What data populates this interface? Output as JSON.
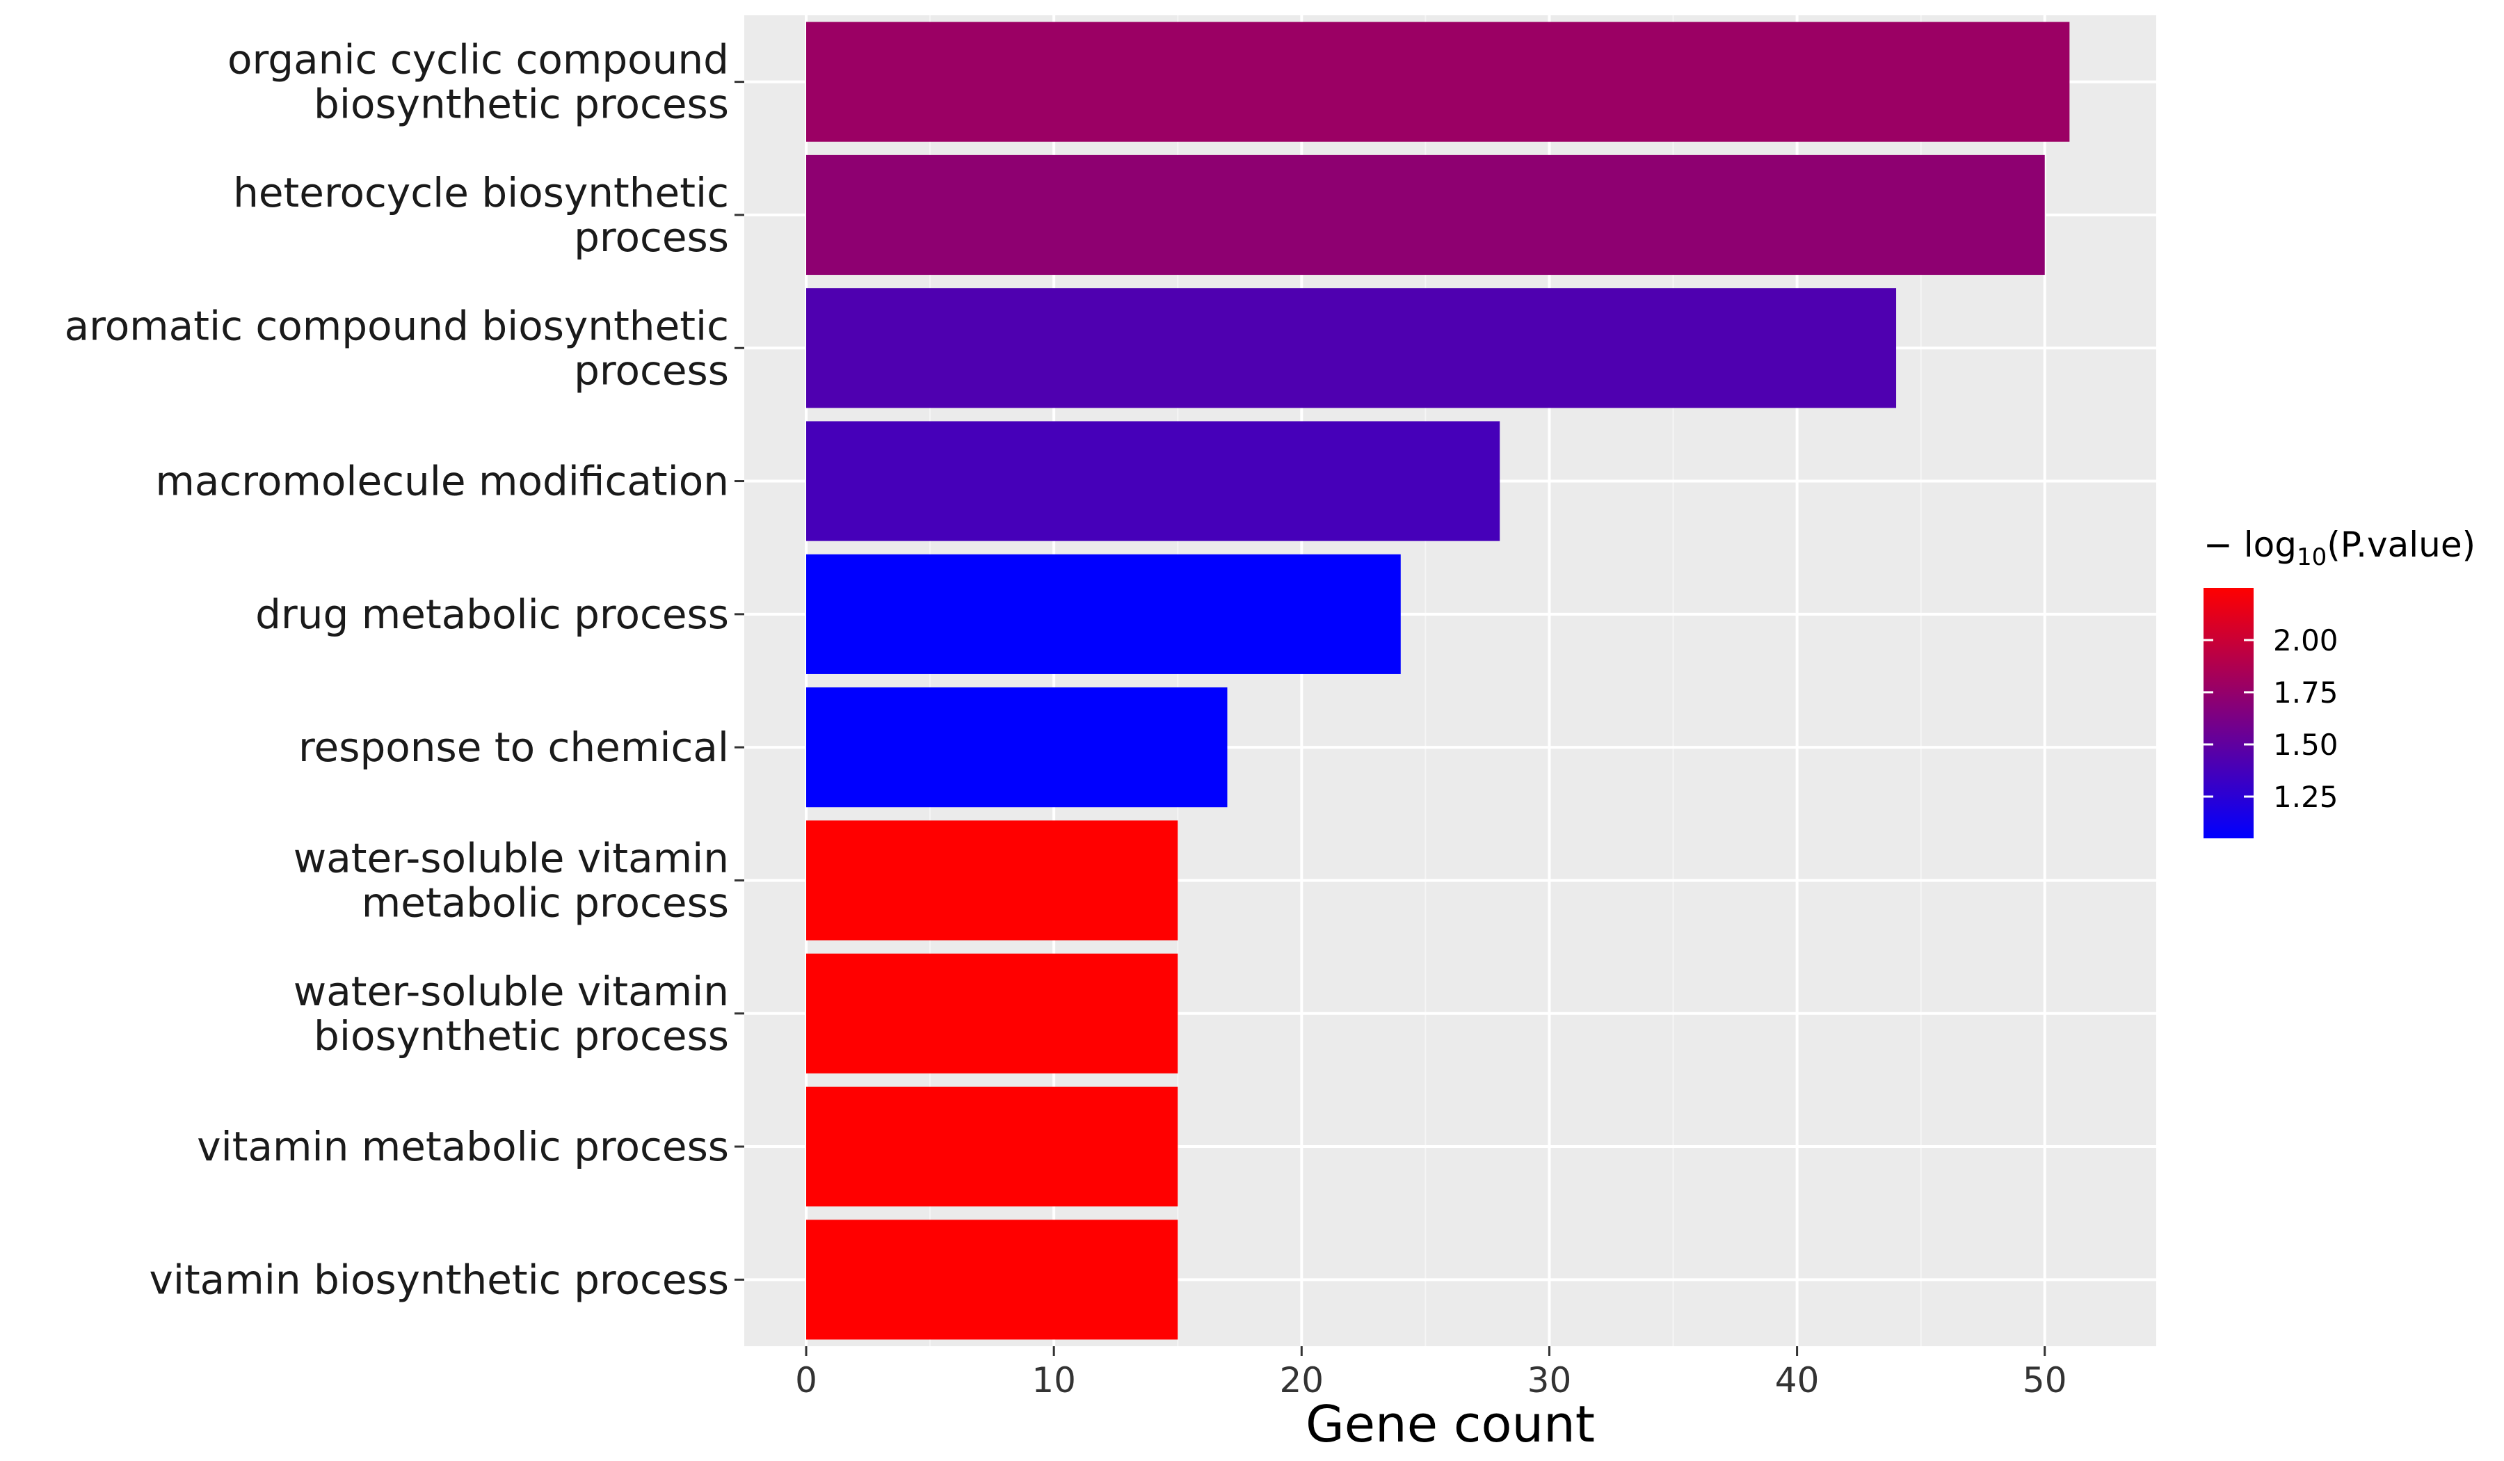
{
  "chart_data": {
    "type": "bar",
    "orientation": "horizontal",
    "categories": [
      [
        "organic cyclic compound",
        "biosynthetic process"
      ],
      [
        "heterocycle biosynthetic",
        "process"
      ],
      [
        "aromatic compound biosynthetic",
        "process"
      ],
      [
        "macromolecule modification"
      ],
      [
        "drug metabolic process"
      ],
      [
        "response to chemical"
      ],
      [
        "water-soluble vitamin",
        "metabolic process"
      ],
      [
        "water-soluble vitamin",
        "biosynthetic process"
      ],
      [
        "vitamin metabolic process"
      ],
      [
        "vitamin biosynthetic process"
      ]
    ],
    "values": [
      51,
      50,
      44,
      28,
      24,
      17,
      15,
      15,
      15,
      15
    ],
    "color_values": [
      1.78,
      1.72,
      1.42,
      1.38,
      1.05,
      1.05,
      2.25,
      2.25,
      2.25,
      2.25
    ],
    "xlabel": "Gene count",
    "xlim": [
      -2.5,
      54.5
    ],
    "xticks": [
      0,
      10,
      20,
      30,
      40,
      50
    ],
    "grid": true,
    "legend": {
      "title_prefix": "− log",
      "title_subscript": "10",
      "title_suffix": "(P.value)",
      "position": "right",
      "range": [
        1.05,
        2.25
      ],
      "ticks": [
        2.0,
        1.75,
        1.5,
        1.25
      ],
      "tick_labels": [
        "2.00",
        "1.75",
        "1.50",
        "1.25"
      ],
      "color_low": "#0000ff",
      "color_high": "#ff0000"
    }
  },
  "colors": {
    "panel_background": "#ebebeb",
    "grid_major": "#ffffff",
    "grid_minor": "#f5f5f5"
  }
}
